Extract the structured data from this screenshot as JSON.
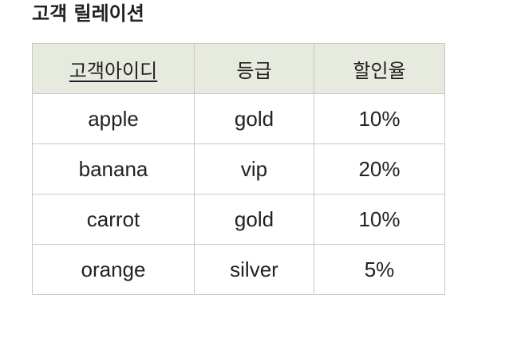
{
  "title": "고객 릴레이션",
  "table": {
    "headers": [
      {
        "label": "고객아이디",
        "primary_key": true
      },
      {
        "label": "등급",
        "primary_key": false
      },
      {
        "label": "할인율",
        "primary_key": false
      }
    ],
    "rows": [
      [
        "apple",
        "gold",
        "10%"
      ],
      [
        "banana",
        "vip",
        "20%"
      ],
      [
        "carrot",
        "gold",
        "10%"
      ],
      [
        "orange",
        "silver",
        "5%"
      ]
    ]
  },
  "colors": {
    "header_background": "#e6eadf",
    "border": "#c8c8c8",
    "text": "#222222"
  }
}
